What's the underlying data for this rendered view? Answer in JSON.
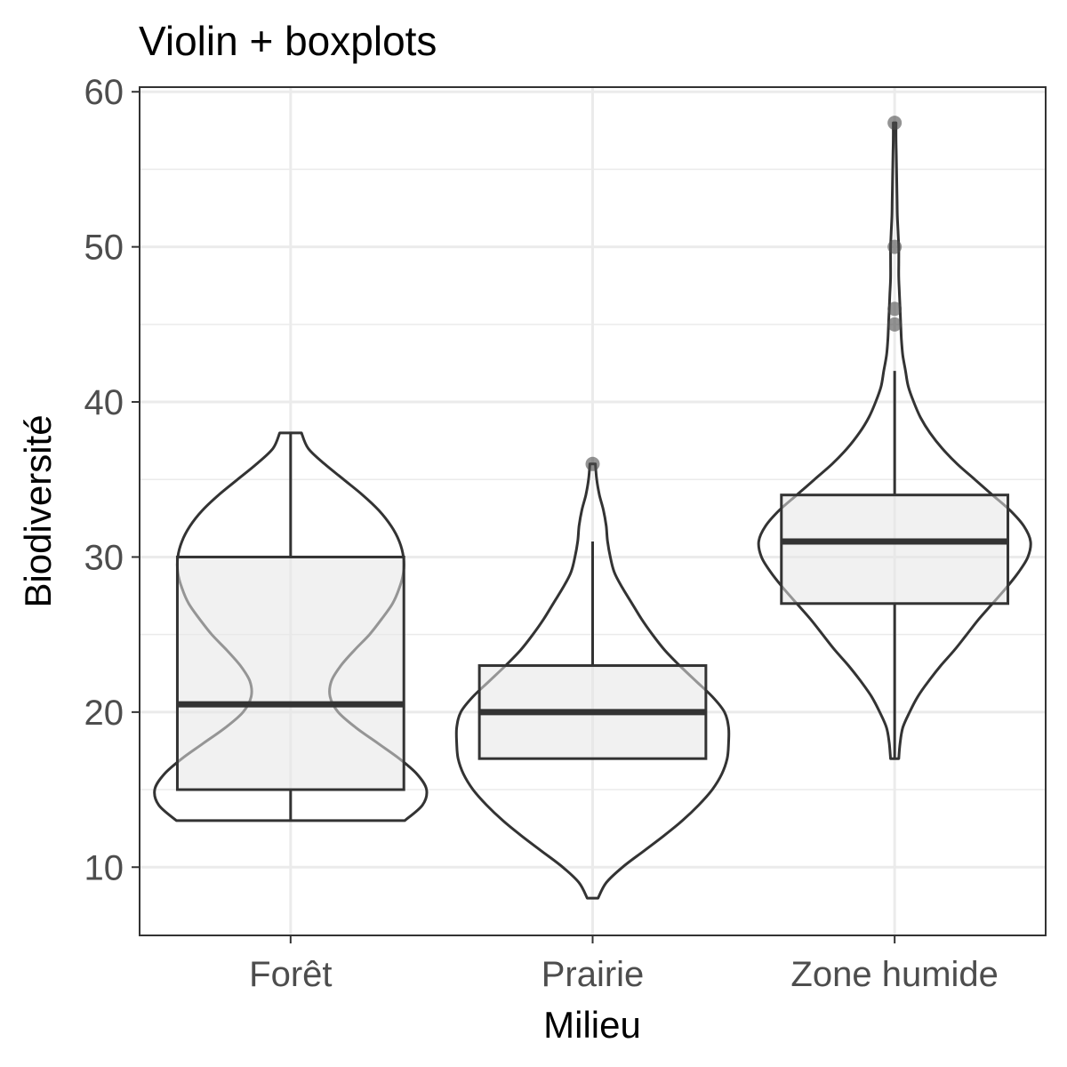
{
  "chart_data": {
    "type": "violin",
    "title": "Violin + boxplots",
    "xlabel": "Milieu",
    "ylabel": "Biodiversité",
    "ylim": [
      5.6,
      60.3
    ],
    "y_ticks": [
      10,
      20,
      30,
      40,
      50,
      60
    ],
    "y_minor_ticks": [
      15,
      25,
      35,
      45,
      55
    ],
    "grid": true,
    "legend": "none",
    "colors": {
      "box_fill": "#e5e5e5",
      "outline": "#333333",
      "grid": "#ebebeb",
      "outlier": "#4d4d4d"
    },
    "categories": [
      "Forêt",
      "Prairie",
      "Zone humide"
    ],
    "groups": [
      {
        "name": "Forêt",
        "min": 13,
        "q1": 15,
        "median": 20.5,
        "q3": 30,
        "max": 38,
        "outliers": [],
        "density": [
          [
            13,
            0.84
          ],
          [
            14,
            0.97
          ],
          [
            15,
            1.0
          ],
          [
            16,
            0.93
          ],
          [
            17,
            0.8
          ],
          [
            18,
            0.64
          ],
          [
            19,
            0.48
          ],
          [
            20,
            0.35
          ],
          [
            21,
            0.29
          ],
          [
            22,
            0.3
          ],
          [
            23,
            0.37
          ],
          [
            24,
            0.47
          ],
          [
            25,
            0.58
          ],
          [
            26,
            0.67
          ],
          [
            27,
            0.75
          ],
          [
            28,
            0.8
          ],
          [
            29,
            0.83
          ],
          [
            30,
            0.83
          ],
          [
            31,
            0.8
          ],
          [
            32,
            0.74
          ],
          [
            33,
            0.65
          ],
          [
            34,
            0.53
          ],
          [
            35,
            0.39
          ],
          [
            36,
            0.25
          ],
          [
            37,
            0.13
          ],
          [
            38,
            0.08
          ]
        ]
      },
      {
        "name": "Prairie",
        "min": 17,
        "q1": 17,
        "median": 20,
        "q3": 23,
        "max": 31,
        "outliers": [
          36
        ],
        "density": [
          [
            8,
            0.04
          ],
          [
            9,
            0.1
          ],
          [
            10,
            0.22
          ],
          [
            11,
            0.37
          ],
          [
            12,
            0.52
          ],
          [
            13,
            0.66
          ],
          [
            14,
            0.78
          ],
          [
            15,
            0.88
          ],
          [
            16,
            0.95
          ],
          [
            17,
            0.99
          ],
          [
            18,
            1.0
          ],
          [
            19,
            1.0
          ],
          [
            20,
            0.97
          ],
          [
            21,
            0.88
          ],
          [
            22,
            0.76
          ],
          [
            23,
            0.64
          ],
          [
            24,
            0.53
          ],
          [
            25,
            0.44
          ],
          [
            26,
            0.36
          ],
          [
            27,
            0.29
          ],
          [
            28,
            0.22
          ],
          [
            29,
            0.16
          ],
          [
            30,
            0.13
          ],
          [
            31,
            0.11
          ],
          [
            32,
            0.1
          ],
          [
            33,
            0.08
          ],
          [
            34,
            0.05
          ],
          [
            35,
            0.03
          ],
          [
            36,
            0.02
          ]
        ]
      },
      {
        "name": "Zone humide",
        "min": 17,
        "q1": 27,
        "median": 31,
        "q3": 34,
        "max": 42,
        "outliers": [
          45,
          46,
          50,
          58
        ],
        "density": [
          [
            17,
            0.03
          ],
          [
            18,
            0.04
          ],
          [
            19,
            0.06
          ],
          [
            20,
            0.11
          ],
          [
            21,
            0.17
          ],
          [
            22,
            0.25
          ],
          [
            23,
            0.34
          ],
          [
            24,
            0.44
          ],
          [
            25,
            0.53
          ],
          [
            26,
            0.62
          ],
          [
            27,
            0.72
          ],
          [
            28,
            0.82
          ],
          [
            29,
            0.91
          ],
          [
            30,
            0.98
          ],
          [
            31,
            1.0
          ],
          [
            32,
            0.95
          ],
          [
            33,
            0.85
          ],
          [
            34,
            0.72
          ],
          [
            35,
            0.59
          ],
          [
            36,
            0.46
          ],
          [
            37,
            0.35
          ],
          [
            38,
            0.26
          ],
          [
            39,
            0.19
          ],
          [
            40,
            0.14
          ],
          [
            41,
            0.1
          ],
          [
            42,
            0.08
          ],
          [
            43,
            0.06
          ],
          [
            44,
            0.05
          ],
          [
            45,
            0.045
          ],
          [
            46,
            0.04
          ],
          [
            47,
            0.035
          ],
          [
            48,
            0.03
          ],
          [
            49,
            0.03
          ],
          [
            50,
            0.03
          ],
          [
            51,
            0.025
          ],
          [
            52,
            0.02
          ],
          [
            53,
            0.018
          ],
          [
            54,
            0.016
          ],
          [
            55,
            0.014
          ],
          [
            56,
            0.012
          ],
          [
            57,
            0.01
          ],
          [
            58,
            0.01
          ]
        ]
      }
    ]
  }
}
